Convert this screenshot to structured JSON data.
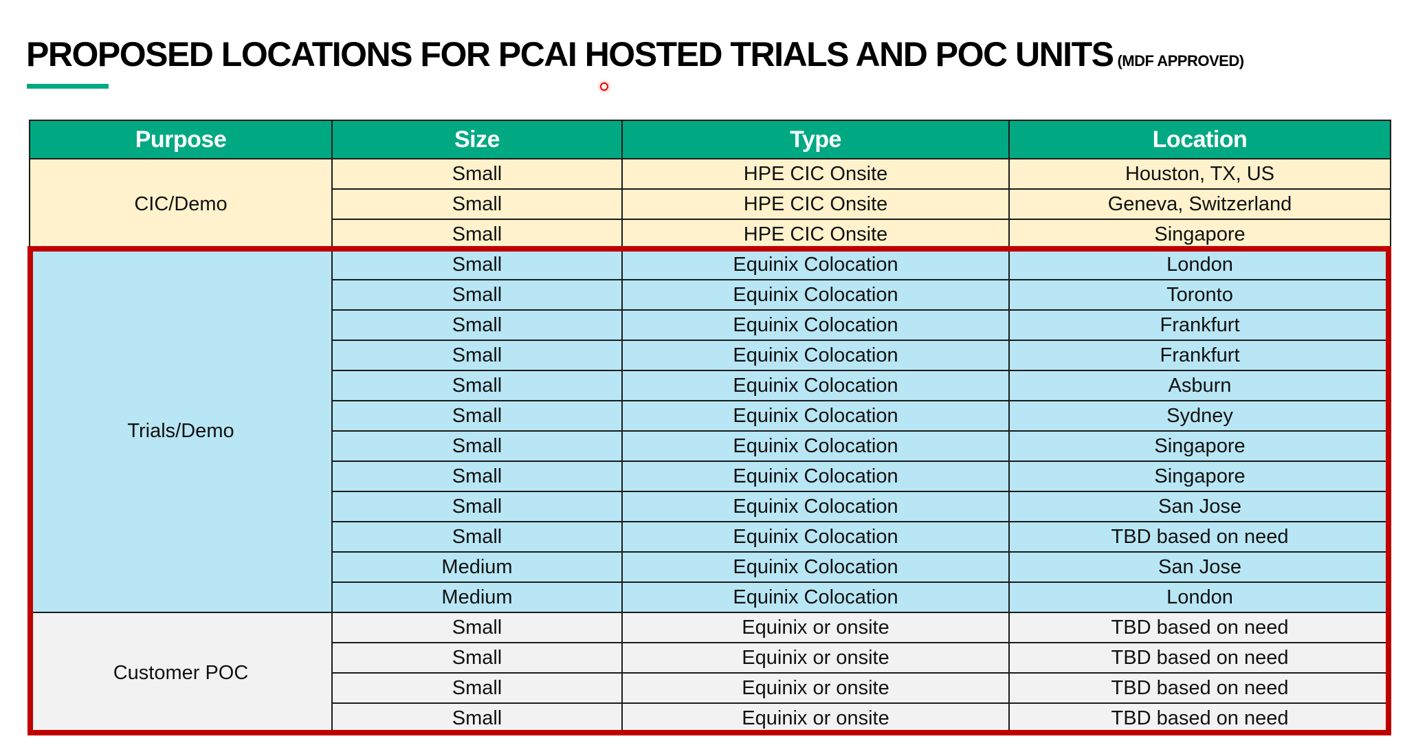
{
  "title": {
    "main": "PROPOSED LOCATIONS FOR PCAI HOSTED TRIALS AND POC UNITS",
    "sub": "(MDF APPROVED)"
  },
  "colors": {
    "header": "#01a982",
    "cic": "#fff2cc",
    "trials": "#b8e6f4",
    "poc": "#f2f2f2",
    "highlight": "#c00000"
  },
  "table": {
    "headers": [
      "Purpose",
      "Size",
      "Type",
      "Location"
    ],
    "groups": [
      {
        "purpose": "CIC/Demo",
        "rows": [
          [
            "Small",
            "HPE CIC Onsite",
            "Houston, TX, US"
          ],
          [
            "Small",
            "HPE CIC Onsite",
            "Geneva, Switzerland"
          ],
          [
            "Small",
            "HPE CIC Onsite",
            "Singapore"
          ]
        ]
      },
      {
        "purpose": "Trials/Demo",
        "rows": [
          [
            "Small",
            "Equinix Colocation",
            "London"
          ],
          [
            "Small",
            "Equinix Colocation",
            "Toronto"
          ],
          [
            "Small",
            "Equinix Colocation",
            "Frankfurt"
          ],
          [
            "Small",
            "Equinix Colocation",
            "Frankfurt"
          ],
          [
            "Small",
            "Equinix Colocation",
            "Asburn"
          ],
          [
            "Small",
            "Equinix Colocation",
            "Sydney"
          ],
          [
            "Small",
            "Equinix Colocation",
            "Singapore"
          ],
          [
            "Small",
            "Equinix Colocation",
            "Singapore"
          ],
          [
            "Small",
            "Equinix Colocation",
            "San Jose"
          ],
          [
            "Small",
            "Equinix Colocation",
            "TBD based on need"
          ],
          [
            "Medium",
            "Equinix Colocation",
            "San Jose"
          ],
          [
            "Medium",
            "Equinix Colocation",
            "London"
          ]
        ]
      },
      {
        "purpose": "Customer POC",
        "rows": [
          [
            "Small",
            "Equinix or onsite",
            "TBD based on need"
          ],
          [
            "Small",
            "Equinix or onsite",
            "TBD based on need"
          ],
          [
            "Small",
            "Equinix or onsite",
            "TBD based on need"
          ],
          [
            "Small",
            "Equinix or onsite",
            "TBD based on need"
          ]
        ]
      }
    ]
  }
}
